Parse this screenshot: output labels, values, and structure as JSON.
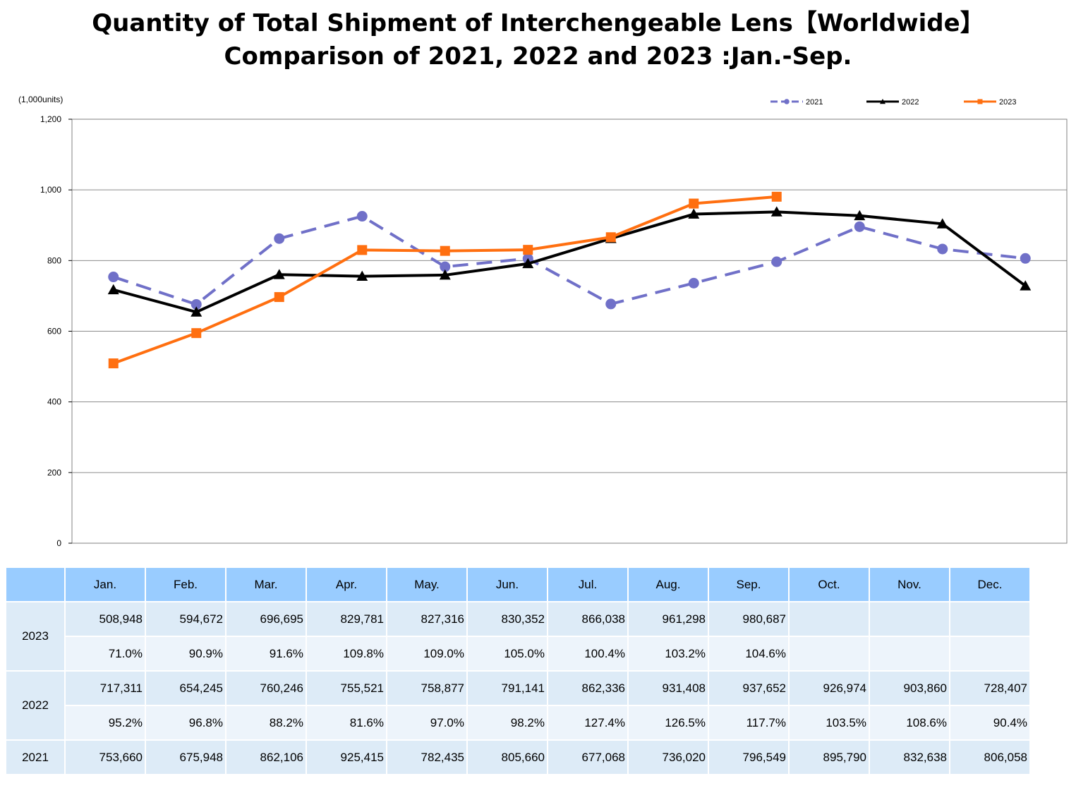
{
  "title": {
    "line1": "Quantity of Total Shipment of Interchengeable Lens【Worldwide】",
    "line2": "Comparison of 2021, 2022 and 2023 :Jan.-Sep."
  },
  "chart_data": {
    "type": "line",
    "unit_label": "(1,000units)",
    "categories": [
      "Jan.",
      "Feb.",
      "Mar.",
      "Apr.",
      "May.",
      "Jun.",
      "Jul.",
      "Aug.",
      "Sep.",
      "Oct.",
      "Nov.",
      "Dec."
    ],
    "ylim": [
      0,
      1200
    ],
    "yticks": [
      0,
      200,
      400,
      600,
      800,
      1000,
      1200
    ],
    "ytick_labels": [
      "0",
      "200",
      "400",
      "600",
      "800",
      "1,000",
      "1,200"
    ],
    "grid": true,
    "legend_position": "top-right",
    "series": [
      {
        "name": "2021",
        "color": "#7070c8",
        "style": "dashed",
        "marker": "circle",
        "values": [
          753.66,
          675.948,
          862.106,
          925.415,
          782.435,
          805.66,
          677.068,
          736.02,
          796.549,
          895.79,
          832.638,
          806.058
        ]
      },
      {
        "name": "2022",
        "color": "#000000",
        "style": "solid",
        "marker": "triangle",
        "values": [
          717.311,
          654.245,
          760.246,
          755.521,
          758.877,
          791.141,
          862.336,
          931.408,
          937.652,
          926.974,
          903.86,
          728.407
        ]
      },
      {
        "name": "2023",
        "color": "#ff6f10",
        "style": "solid",
        "marker": "square",
        "values": [
          508.948,
          594.672,
          696.695,
          829.781,
          827.316,
          830.352,
          866.038,
          961.298,
          980.687,
          null,
          null,
          null
        ]
      }
    ]
  },
  "table": {
    "headers": [
      "",
      "Jan.",
      "Feb.",
      "Mar.",
      "Apr.",
      "May.",
      "Jun.",
      "Jul.",
      "Aug.",
      "Sep.",
      "Oct.",
      "Nov.",
      "Dec."
    ],
    "groups": [
      {
        "year": "2023",
        "values": [
          "508,948",
          "594,672",
          "696,695",
          "829,781",
          "827,316",
          "830,352",
          "866,038",
          "961,298",
          "980,687",
          "",
          "",
          ""
        ],
        "ratios": [
          "71.0%",
          "90.9%",
          "91.6%",
          "109.8%",
          "109.0%",
          "105.0%",
          "100.4%",
          "103.2%",
          "104.6%",
          "",
          "",
          ""
        ]
      },
      {
        "year": "2022",
        "values": [
          "717,311",
          "654,245",
          "760,246",
          "755,521",
          "758,877",
          "791,141",
          "862,336",
          "931,408",
          "937,652",
          "926,974",
          "903,860",
          "728,407"
        ],
        "ratios": [
          "95.2%",
          "96.8%",
          "88.2%",
          "81.6%",
          "97.0%",
          "98.2%",
          "127.4%",
          "126.5%",
          "117.7%",
          "103.5%",
          "108.6%",
          "90.4%"
        ]
      },
      {
        "year": "2021",
        "values": [
          "753,660",
          "675,948",
          "862,106",
          "925,415",
          "782,435",
          "805,660",
          "677,068",
          "736,020",
          "796,549",
          "895,790",
          "832,638",
          "806,058"
        ]
      }
    ]
  }
}
